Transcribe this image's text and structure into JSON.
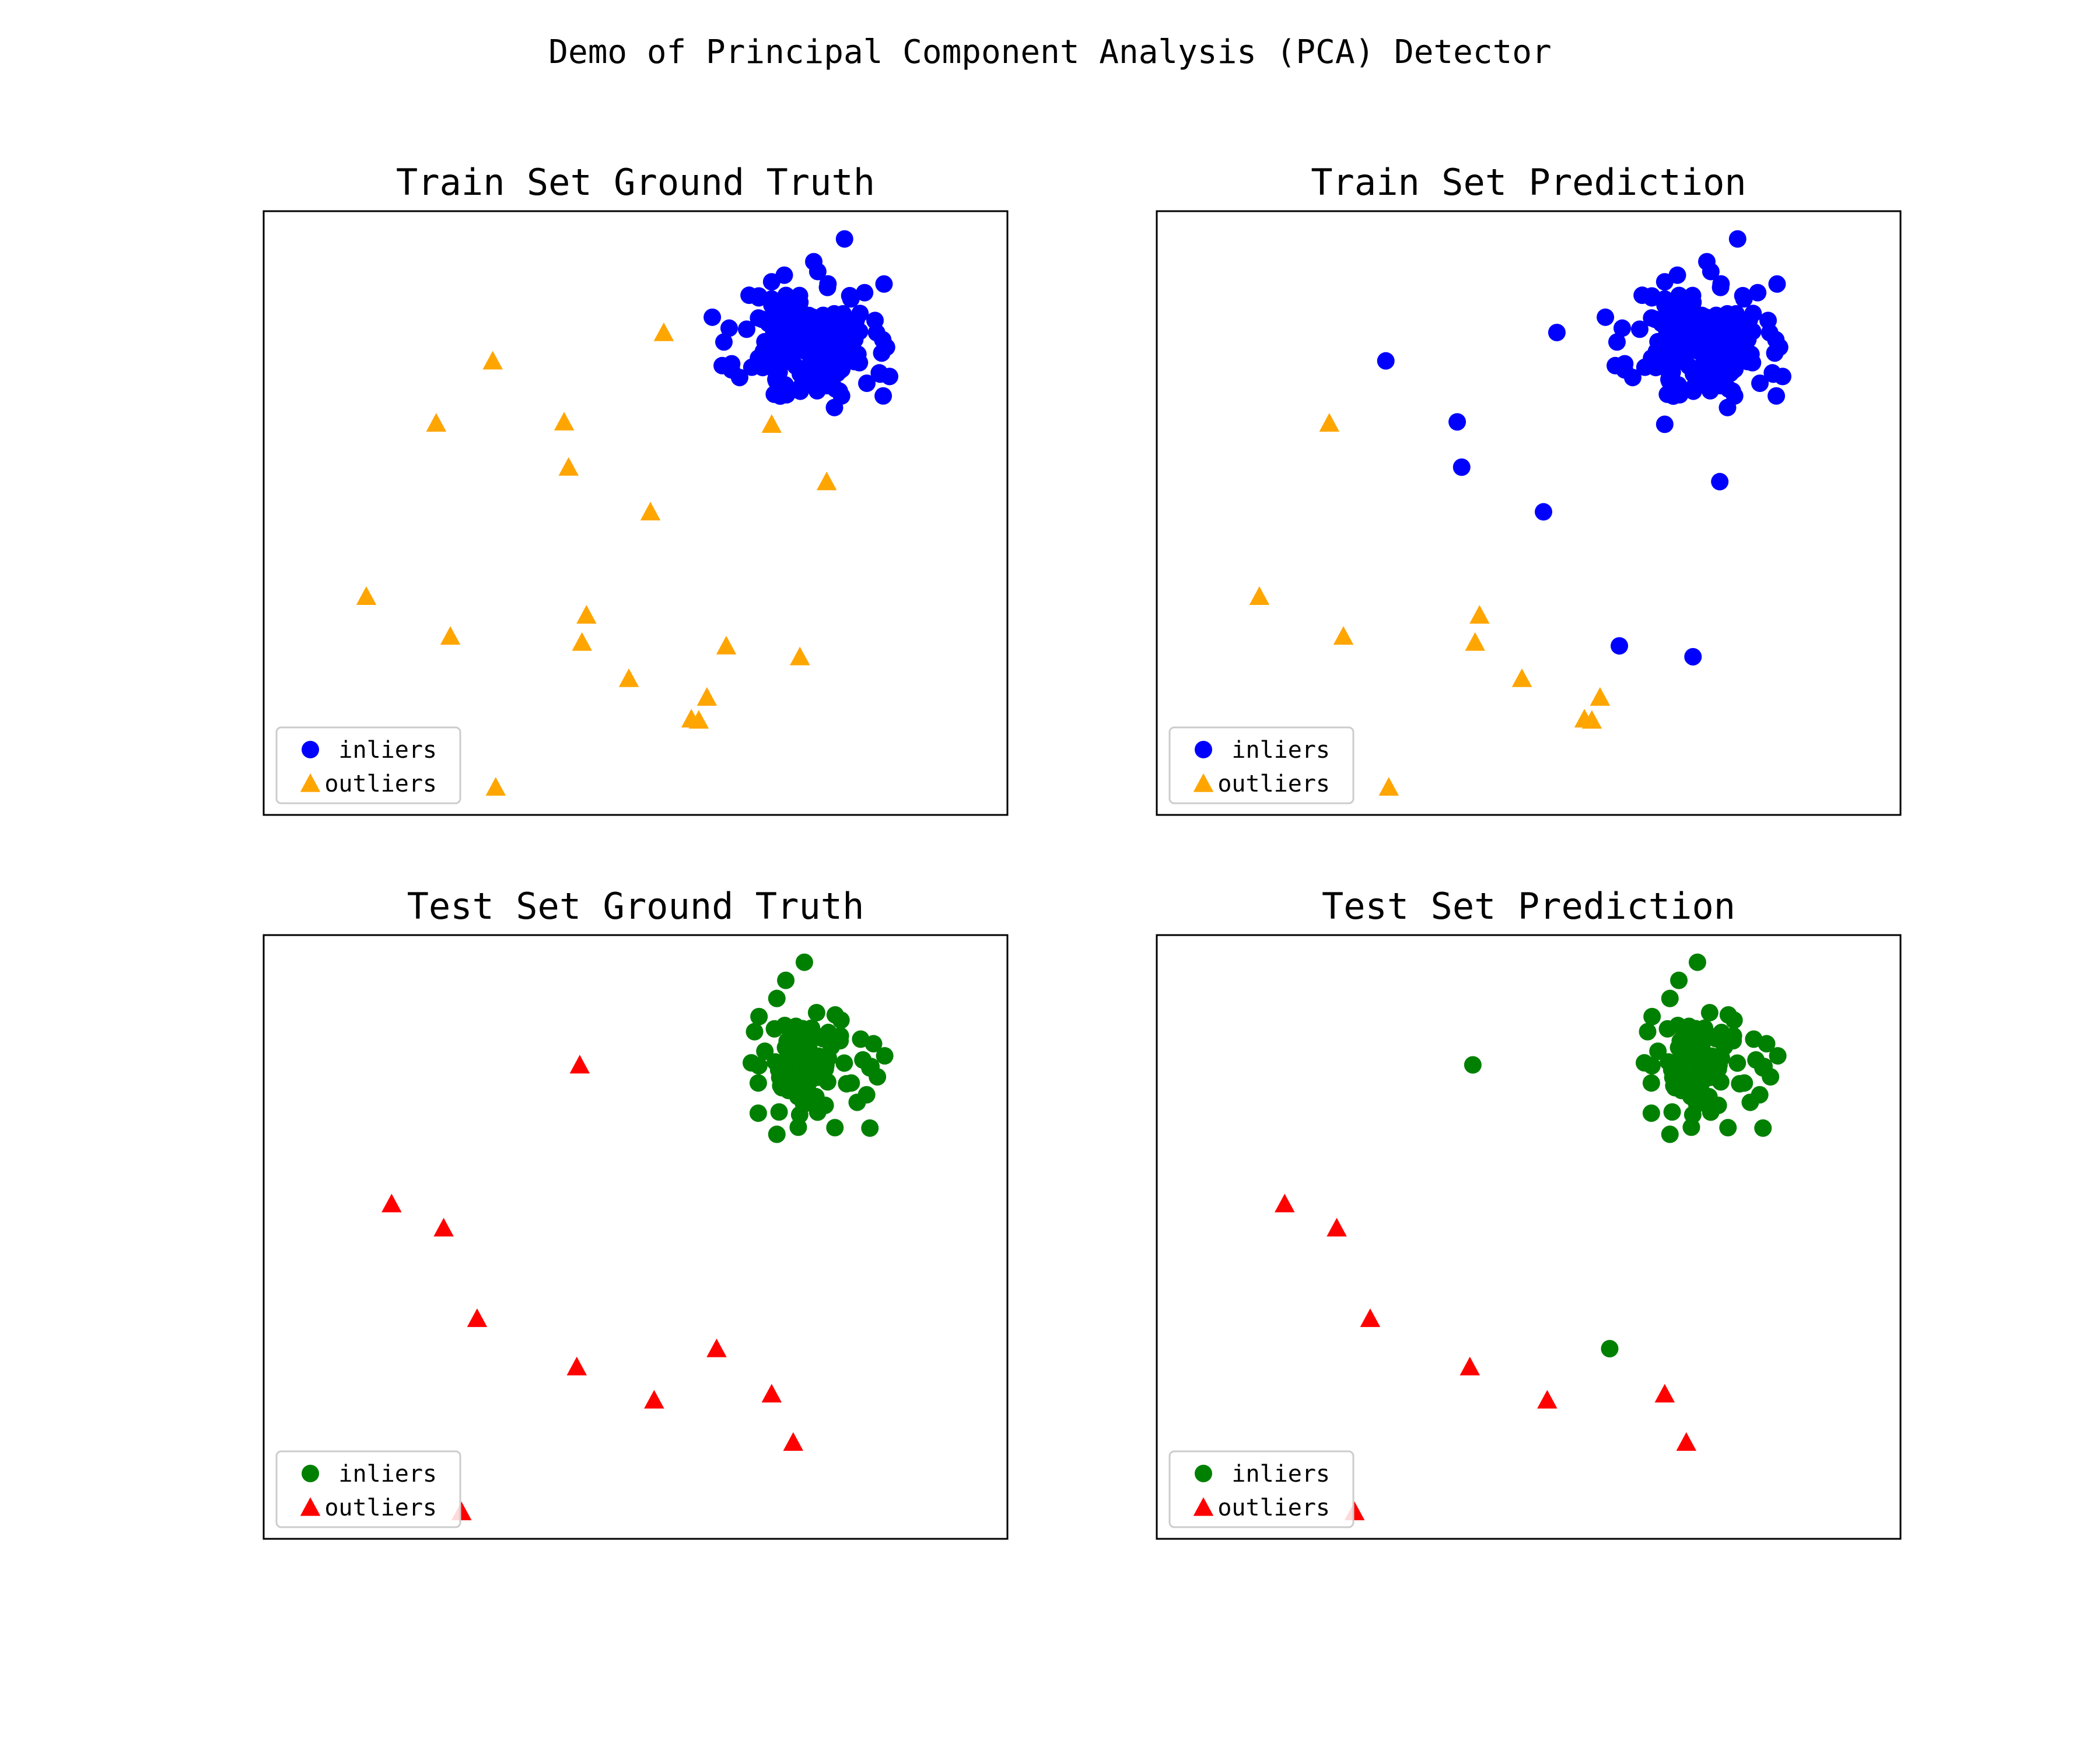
{
  "figure_title": "Demo of Principal Component Analysis (PCA) Detector",
  "chart_data": [
    {
      "type": "scatter",
      "title": "Train Set Ground Truth",
      "xlabel": "",
      "ylabel": "",
      "xlim": [
        0,
        100
      ],
      "ylim": [
        0,
        100
      ],
      "ticks": false,
      "grid": false,
      "legend_position": "lower-left",
      "cluster": {
        "name": "inliers",
        "color": "#0000ff",
        "marker": "circle",
        "center": [
          73,
          78
        ],
        "spread": [
          4.5,
          5.0
        ],
        "count": 170,
        "seed": 11
      },
      "series": [
        {
          "name": "inliers",
          "color": "#0000ff",
          "marker": "circle",
          "points": [
            [
              78.1,
              95.4
            ],
            [
              67.1,
              74.1
            ],
            [
              72.1,
              84.9
            ],
            [
              68.5,
              82.6
            ],
            [
              79.9,
              76.3
            ],
            [
              74.2,
              77.2
            ],
            [
              72.3,
              71.0
            ],
            [
              83.1,
              76.5
            ],
            [
              68.3,
              88.3
            ],
            [
              70.0,
              89.4
            ],
            [
              77.5,
              73.6
            ],
            [
              80.1,
              74.9
            ],
            [
              76.3,
              72.5
            ],
            [
              82.2,
              81.9
            ],
            [
              78.8,
              86.0
            ],
            [
              74.5,
              90.0
            ],
            [
              80.8,
              86.5
            ],
            [
              77.7,
              69.4
            ],
            [
              83.3,
              69.4
            ],
            [
              81.1,
              71.5
            ]
          ]
        },
        {
          "name": "outliers",
          "color": "#ffa500",
          "marker": "triangle",
          "points": [
            [
              53.8,
              79.9
            ],
            [
              30.8,
              75.2
            ],
            [
              40.4,
              65.1
            ],
            [
              23.2,
              64.9
            ],
            [
              68.3,
              64.7
            ],
            [
              41.0,
              57.6
            ],
            [
              75.7,
              55.2
            ],
            [
              52.0,
              50.2
            ],
            [
              13.8,
              36.2
            ],
            [
              43.4,
              33.1
            ],
            [
              25.1,
              29.6
            ],
            [
              42.8,
              28.6
            ],
            [
              62.2,
              28.0
            ],
            [
              72.1,
              26.2
            ],
            [
              49.1,
              22.6
            ],
            [
              59.6,
              19.5
            ],
            [
              57.5,
              15.9
            ],
            [
              58.5,
              15.7
            ],
            [
              31.2,
              4.6
            ]
          ]
        }
      ]
    },
    {
      "type": "scatter",
      "title": "Train Set Prediction",
      "xlabel": "",
      "ylabel": "",
      "xlim": [
        0,
        100
      ],
      "ylim": [
        0,
        100
      ],
      "ticks": false,
      "grid": false,
      "legend_position": "lower-left",
      "cluster": {
        "name": "inliers",
        "color": "#0000ff",
        "marker": "circle",
        "center": [
          73,
          78
        ],
        "spread": [
          4.5,
          5.0
        ],
        "count": 170,
        "seed": 11
      },
      "series": [
        {
          "name": "inliers",
          "color": "#0000ff",
          "marker": "circle",
          "points": [
            [
              78.1,
              95.4
            ],
            [
              67.1,
              74.1
            ],
            [
              72.1,
              84.9
            ],
            [
              68.5,
              82.6
            ],
            [
              79.9,
              76.3
            ],
            [
              74.2,
              77.2
            ],
            [
              72.3,
              71.0
            ],
            [
              83.1,
              76.5
            ],
            [
              68.3,
              88.3
            ],
            [
              70.0,
              89.4
            ],
            [
              77.5,
              73.6
            ],
            [
              80.1,
              74.9
            ],
            [
              76.3,
              72.5
            ],
            [
              82.2,
              81.9
            ],
            [
              78.8,
              86.0
            ],
            [
              74.5,
              90.0
            ],
            [
              80.8,
              86.5
            ],
            [
              77.7,
              69.4
            ],
            [
              83.3,
              69.4
            ],
            [
              81.1,
              71.5
            ],
            [
              53.8,
              79.9
            ],
            [
              30.8,
              75.2
            ],
            [
              40.4,
              65.1
            ],
            [
              68.3,
              64.7
            ],
            [
              41.0,
              57.6
            ],
            [
              75.7,
              55.2
            ],
            [
              52.0,
              50.2
            ],
            [
              62.2,
              28.0
            ],
            [
              72.1,
              26.2
            ]
          ]
        },
        {
          "name": "outliers",
          "color": "#ffa500",
          "marker": "triangle",
          "points": [
            [
              23.2,
              64.9
            ],
            [
              13.8,
              36.2
            ],
            [
              43.4,
              33.1
            ],
            [
              25.1,
              29.6
            ],
            [
              42.8,
              28.6
            ],
            [
              49.1,
              22.6
            ],
            [
              59.6,
              19.5
            ],
            [
              57.5,
              15.9
            ],
            [
              58.5,
              15.7
            ],
            [
              31.2,
              4.6
            ]
          ]
        }
      ]
    },
    {
      "type": "scatter",
      "title": "Test Set Ground Truth",
      "xlabel": "",
      "ylabel": "",
      "xlim": [
        0,
        100
      ],
      "ylim": [
        0,
        100
      ],
      "ticks": false,
      "grid": false,
      "legend_position": "lower-left",
      "cluster": {
        "name": "inliers",
        "color": "#008000",
        "marker": "circle",
        "center": [
          73,
          79
        ],
        "spread": [
          3.6,
          4.2
        ],
        "count": 75,
        "seed": 29
      },
      "series": [
        {
          "name": "inliers",
          "color": "#008000",
          "marker": "circle",
          "points": [
            [
              72.7,
              95.5
            ],
            [
              70.2,
              92.5
            ],
            [
              69.0,
              89.5
            ],
            [
              66.6,
              86.5
            ],
            [
              66.0,
              84.0
            ],
            [
              73.5,
              84.0
            ],
            [
              77.5,
              82.5
            ],
            [
              82.0,
              82.0
            ],
            [
              83.5,
              80.0
            ],
            [
              81.5,
              78.0
            ],
            [
              79.0,
              75.5
            ],
            [
              72.5,
              73.5
            ],
            [
              70.0,
              75.0
            ],
            [
              66.5,
              75.5
            ],
            [
              66.5,
              70.5
            ],
            [
              69.3,
              70.7
            ],
            [
              72.6,
              72.0
            ],
            [
              75.5,
              71.8
            ],
            [
              79.8,
              72.3
            ],
            [
              69.0,
              67.0
            ]
          ]
        },
        {
          "name": "outliers",
          "color": "#ff0000",
          "marker": "triangle",
          "points": [
            [
              42.5,
              78.5
            ],
            [
              17.2,
              55.5
            ],
            [
              24.2,
              51.5
            ],
            [
              28.7,
              36.5
            ],
            [
              42.1,
              28.5
            ],
            [
              60.9,
              31.5
            ],
            [
              52.5,
              23.0
            ],
            [
              68.3,
              24.0
            ],
            [
              71.2,
              16.0
            ],
            [
              26.6,
              4.5
            ]
          ]
        }
      ]
    },
    {
      "type": "scatter",
      "title": "Test Set Prediction",
      "xlabel": "",
      "ylabel": "",
      "xlim": [
        0,
        100
      ],
      "ylim": [
        0,
        100
      ],
      "ticks": false,
      "grid": false,
      "legend_position": "lower-left",
      "cluster": {
        "name": "inliers",
        "color": "#008000",
        "marker": "circle",
        "center": [
          73,
          79
        ],
        "spread": [
          3.6,
          4.2
        ],
        "count": 75,
        "seed": 29
      },
      "series": [
        {
          "name": "inliers",
          "color": "#008000",
          "marker": "circle",
          "points": [
            [
              72.7,
              95.5
            ],
            [
              70.2,
              92.5
            ],
            [
              69.0,
              89.5
            ],
            [
              66.6,
              86.5
            ],
            [
              66.0,
              84.0
            ],
            [
              73.5,
              84.0
            ],
            [
              77.5,
              82.5
            ],
            [
              82.0,
              82.0
            ],
            [
              83.5,
              80.0
            ],
            [
              81.5,
              78.0
            ],
            [
              79.0,
              75.5
            ],
            [
              72.5,
              73.5
            ],
            [
              70.0,
              75.0
            ],
            [
              66.5,
              75.5
            ],
            [
              66.5,
              70.5
            ],
            [
              69.3,
              70.7
            ],
            [
              72.6,
              72.0
            ],
            [
              75.5,
              71.8
            ],
            [
              79.8,
              72.3
            ],
            [
              69.0,
              67.0
            ],
            [
              42.5,
              78.5
            ],
            [
              60.9,
              31.5
            ]
          ]
        },
        {
          "name": "outliers",
          "color": "#ff0000",
          "marker": "triangle",
          "points": [
            [
              17.2,
              55.5
            ],
            [
              24.2,
              51.5
            ],
            [
              28.7,
              36.5
            ],
            [
              42.1,
              28.5
            ],
            [
              52.5,
              23.0
            ],
            [
              68.3,
              24.0
            ],
            [
              71.2,
              16.0
            ],
            [
              26.6,
              4.5
            ]
          ]
        }
      ]
    }
  ]
}
